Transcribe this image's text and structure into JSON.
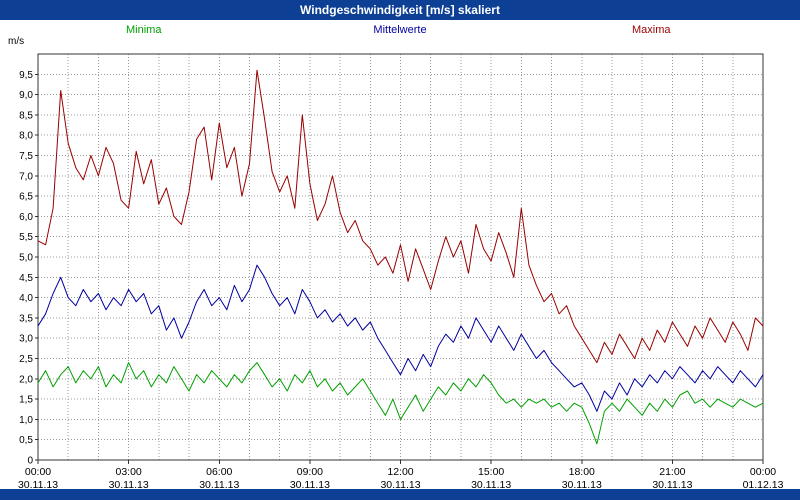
{
  "title_bar": {
    "title": "Windgeschwindigkeit [m/s] skaliert"
  },
  "colors": {
    "title_bar_bg": "#0d3f94",
    "title_text": "#ffffff",
    "bottom_bar_bg": "#0d3f94",
    "grid": "#999999",
    "plot_border": "#333333",
    "axis_text": "#000000",
    "minima": "#00a000",
    "mittelwerte": "#0000a0",
    "maxima": "#990000"
  },
  "legend": [
    {
      "label": "Minima",
      "color": "#00a000"
    },
    {
      "label": "Mittelwerte",
      "color": "#0000a0"
    },
    {
      "label": "Maxima",
      "color": "#990000"
    }
  ],
  "y_axis": {
    "unit": "m/s",
    "min": 0,
    "max": 10,
    "tick_step": 0.5,
    "labels": [
      "0",
      "0,5",
      "1,0",
      "1,5",
      "2,0",
      "2,5",
      "3,0",
      "3,5",
      "4,0",
      "4,5",
      "5,0",
      "5,5",
      "6,0",
      "6,5",
      "7,0",
      "7,5",
      "8,0",
      "8,5",
      "9,0",
      "9,5"
    ]
  },
  "x_axis": {
    "tick_hours": [
      0,
      3,
      6,
      9,
      12,
      15,
      18,
      21,
      24
    ],
    "tick_times": [
      "00:00",
      "03:00",
      "06:00",
      "09:00",
      "12:00",
      "15:00",
      "18:00",
      "21:00",
      "00:00"
    ],
    "dates": [
      "30.11.13",
      "30.11.13",
      "30.11.13",
      "30.11.13",
      "30.11.13",
      "30.11.13",
      "30.11.13",
      "30.11.13",
      "01.12.13"
    ],
    "minor_grid_every_hours": 1
  },
  "chart_data": {
    "type": "line",
    "title": "Windgeschwindigkeit [m/s] skaliert",
    "xlabel": "",
    "ylabel": "m/s",
    "ylim": [
      0,
      10
    ],
    "x": {
      "start_hours": 0,
      "end_hours": 24,
      "step_hours": 0.25
    },
    "grid": true,
    "legend_position": "top",
    "series": [
      {
        "name": "Maxima",
        "color": "#990000",
        "values": [
          5.4,
          5.3,
          6.2,
          9.1,
          7.8,
          7.2,
          6.9,
          7.5,
          7.0,
          7.7,
          7.3,
          6.4,
          6.2,
          7.6,
          6.8,
          7.4,
          6.3,
          6.7,
          6.0,
          5.8,
          6.6,
          7.9,
          8.2,
          6.9,
          8.3,
          7.2,
          7.7,
          6.5,
          7.3,
          9.6,
          8.4,
          7.1,
          6.6,
          7.0,
          6.2,
          8.5,
          6.8,
          5.9,
          6.3,
          7.0,
          6.1,
          5.6,
          5.9,
          5.4,
          5.2,
          4.8,
          5.0,
          4.6,
          5.3,
          4.4,
          5.2,
          4.7,
          4.2,
          4.9,
          5.5,
          5.0,
          5.4,
          4.6,
          5.8,
          5.2,
          4.9,
          5.6,
          5.1,
          4.5,
          6.2,
          4.8,
          4.3,
          3.9,
          4.1,
          3.6,
          3.8,
          3.3,
          3.0,
          2.7,
          2.4,
          2.9,
          2.6,
          3.1,
          2.8,
          2.5,
          3.0,
          2.7,
          3.2,
          2.9,
          3.4,
          3.1,
          2.8,
          3.3,
          3.0,
          3.5,
          3.2,
          2.9,
          3.4,
          3.1,
          2.7,
          3.5,
          3.3
        ]
      },
      {
        "name": "Mittelwerte",
        "color": "#0000a0",
        "values": [
          3.3,
          3.6,
          4.1,
          4.5,
          4.0,
          3.8,
          4.2,
          3.9,
          4.1,
          3.7,
          4.0,
          3.8,
          4.2,
          3.9,
          4.1,
          3.6,
          3.8,
          3.2,
          3.5,
          3.0,
          3.4,
          3.9,
          4.2,
          3.8,
          4.0,
          3.7,
          4.3,
          3.9,
          4.2,
          4.8,
          4.5,
          4.1,
          3.8,
          4.0,
          3.6,
          4.2,
          3.9,
          3.5,
          3.7,
          3.4,
          3.6,
          3.3,
          3.5,
          3.2,
          3.4,
          3.0,
          2.7,
          2.4,
          2.1,
          2.5,
          2.2,
          2.6,
          2.3,
          2.8,
          3.1,
          2.9,
          3.3,
          3.0,
          3.5,
          3.2,
          2.9,
          3.3,
          3.0,
          2.7,
          3.1,
          2.8,
          2.5,
          2.7,
          2.4,
          2.2,
          2.0,
          1.8,
          1.9,
          1.6,
          1.2,
          1.7,
          1.5,
          1.9,
          1.6,
          2.0,
          1.8,
          2.1,
          1.9,
          2.2,
          2.0,
          2.3,
          2.1,
          1.9,
          2.2,
          2.0,
          2.3,
          2.1,
          1.9,
          2.2,
          2.0,
          1.8,
          2.1
        ]
      },
      {
        "name": "Minima",
        "color": "#00a000",
        "values": [
          1.9,
          2.2,
          1.8,
          2.1,
          2.3,
          1.9,
          2.2,
          2.0,
          2.3,
          1.8,
          2.1,
          1.9,
          2.4,
          2.0,
          2.2,
          1.8,
          2.1,
          1.9,
          2.3,
          2.0,
          1.7,
          2.1,
          1.9,
          2.2,
          2.0,
          1.8,
          2.1,
          1.9,
          2.2,
          2.4,
          2.1,
          1.8,
          2.0,
          1.7,
          2.1,
          1.9,
          2.2,
          1.8,
          2.0,
          1.7,
          1.9,
          1.6,
          1.8,
          2.0,
          1.7,
          1.4,
          1.1,
          1.5,
          1.0,
          1.3,
          1.6,
          1.2,
          1.5,
          1.8,
          1.6,
          1.9,
          1.7,
          2.0,
          1.8,
          2.1,
          1.9,
          1.6,
          1.4,
          1.5,
          1.3,
          1.5,
          1.4,
          1.5,
          1.3,
          1.4,
          1.2,
          1.4,
          1.3,
          0.9,
          0.4,
          1.2,
          1.4,
          1.2,
          1.5,
          1.3,
          1.1,
          1.4,
          1.2,
          1.5,
          1.3,
          1.6,
          1.7,
          1.4,
          1.5,
          1.3,
          1.5,
          1.4,
          1.3,
          1.5,
          1.4,
          1.3,
          1.4
        ]
      }
    ]
  }
}
